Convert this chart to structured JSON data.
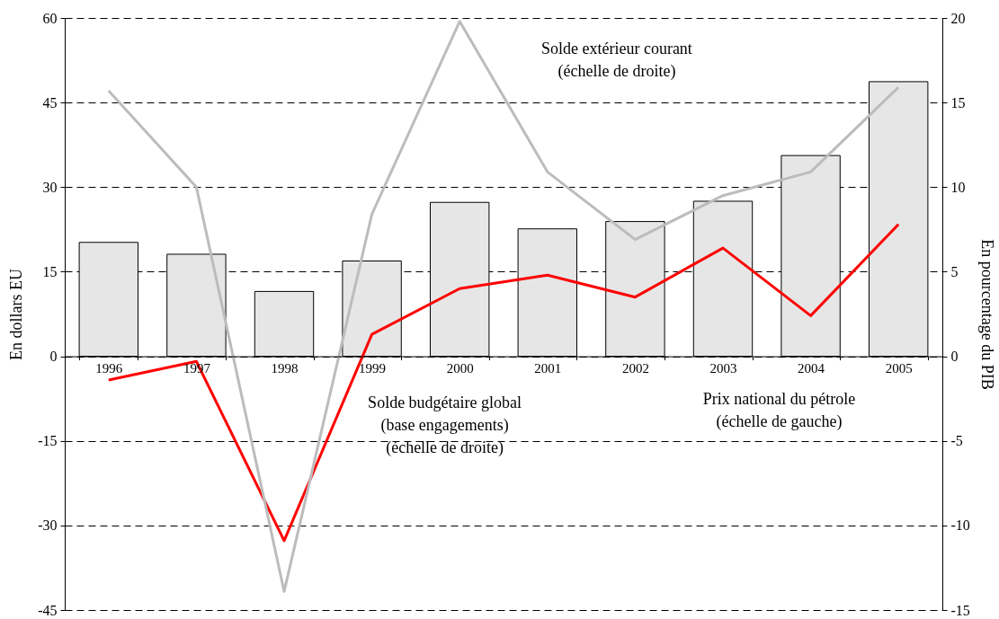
{
  "chart_data": {
    "type": "bar",
    "categories": [
      "1996",
      "1997",
      "1998",
      "1999",
      "2000",
      "2001",
      "2002",
      "2003",
      "2004",
      "2005"
    ],
    "series": [
      {
        "name": "Prix national du pétrole\n(échelle de gauche)",
        "color": "#e6e6e6",
        "values": [
          20.2,
          18.1,
          11.5,
          16.9,
          27.3,
          22.6,
          23.9,
          27.5,
          35.6,
          48.7
        ]
      },
      {
        "name": "Solde budgétaire global\n(base engagements)\n(échelle de droite)",
        "type": "line",
        "axis": "y2",
        "color": "#ff0000",
        "values": [
          -1.4,
          -0.3,
          -10.9,
          1.3,
          4.0,
          4.8,
          3.5,
          6.4,
          2.4,
          7.8
        ]
      },
      {
        "name": "Solde extérieur courant\n(échelle de droite)",
        "type": "line",
        "axis": "y2",
        "color": "#bcbcbc",
        "values": [
          15.7,
          10.0,
          -13.9,
          8.4,
          19.8,
          10.9,
          6.9,
          9.5,
          10.9,
          15.9
        ]
      }
    ],
    "ylabel": "En dollars EU",
    "y2label": "En pourcentage du PIB",
    "ylim": [
      -45,
      60
    ],
    "yticks": [
      -45,
      -30,
      -15,
      0,
      15,
      30,
      45,
      60
    ],
    "y2lim": [
      -15,
      20
    ],
    "y2ticks": [
      -15,
      -10,
      -5,
      0,
      5,
      10,
      15,
      20
    ],
    "grid": "y"
  }
}
